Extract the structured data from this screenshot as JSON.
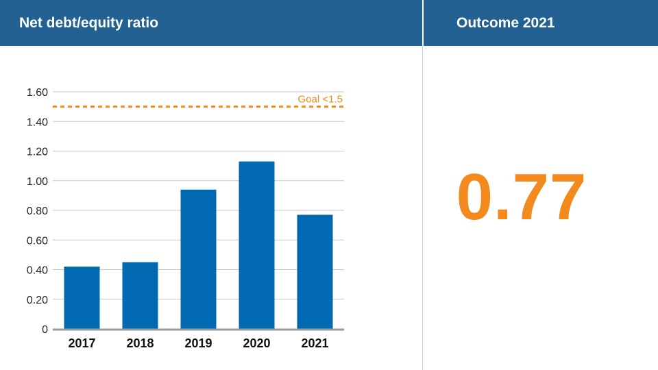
{
  "header": {
    "chart_title": "Net debt/equity ratio",
    "outcome_title": "Outcome 2021"
  },
  "outcome": {
    "value": "0.77"
  },
  "colors": {
    "header_bg": "#236192",
    "bar": "#0069b1",
    "goal": "#f28a1e",
    "grid": "#c8c8c8",
    "baseline": "#9a9a9a"
  },
  "chart_data": {
    "type": "bar",
    "categories": [
      "2017",
      "2018",
      "2019",
      "2020",
      "2021"
    ],
    "values": [
      0.42,
      0.45,
      0.94,
      1.13,
      0.77
    ],
    "title": "Net debt/equity ratio",
    "xlabel": "",
    "ylabel": "",
    "ylim": [
      0,
      1.6
    ],
    "yticks": [
      0,
      0.2,
      0.4,
      0.6,
      0.8,
      1.0,
      1.2,
      1.4,
      1.6
    ],
    "ytick_labels": [
      "0",
      "0.20",
      "0.40",
      "0.60",
      "0.80",
      "1.00",
      "1.20",
      "1.40",
      "1.60"
    ],
    "grid": true,
    "reference_line": {
      "value": 1.5,
      "label": "Goal <1.5",
      "style": "dashed"
    }
  }
}
